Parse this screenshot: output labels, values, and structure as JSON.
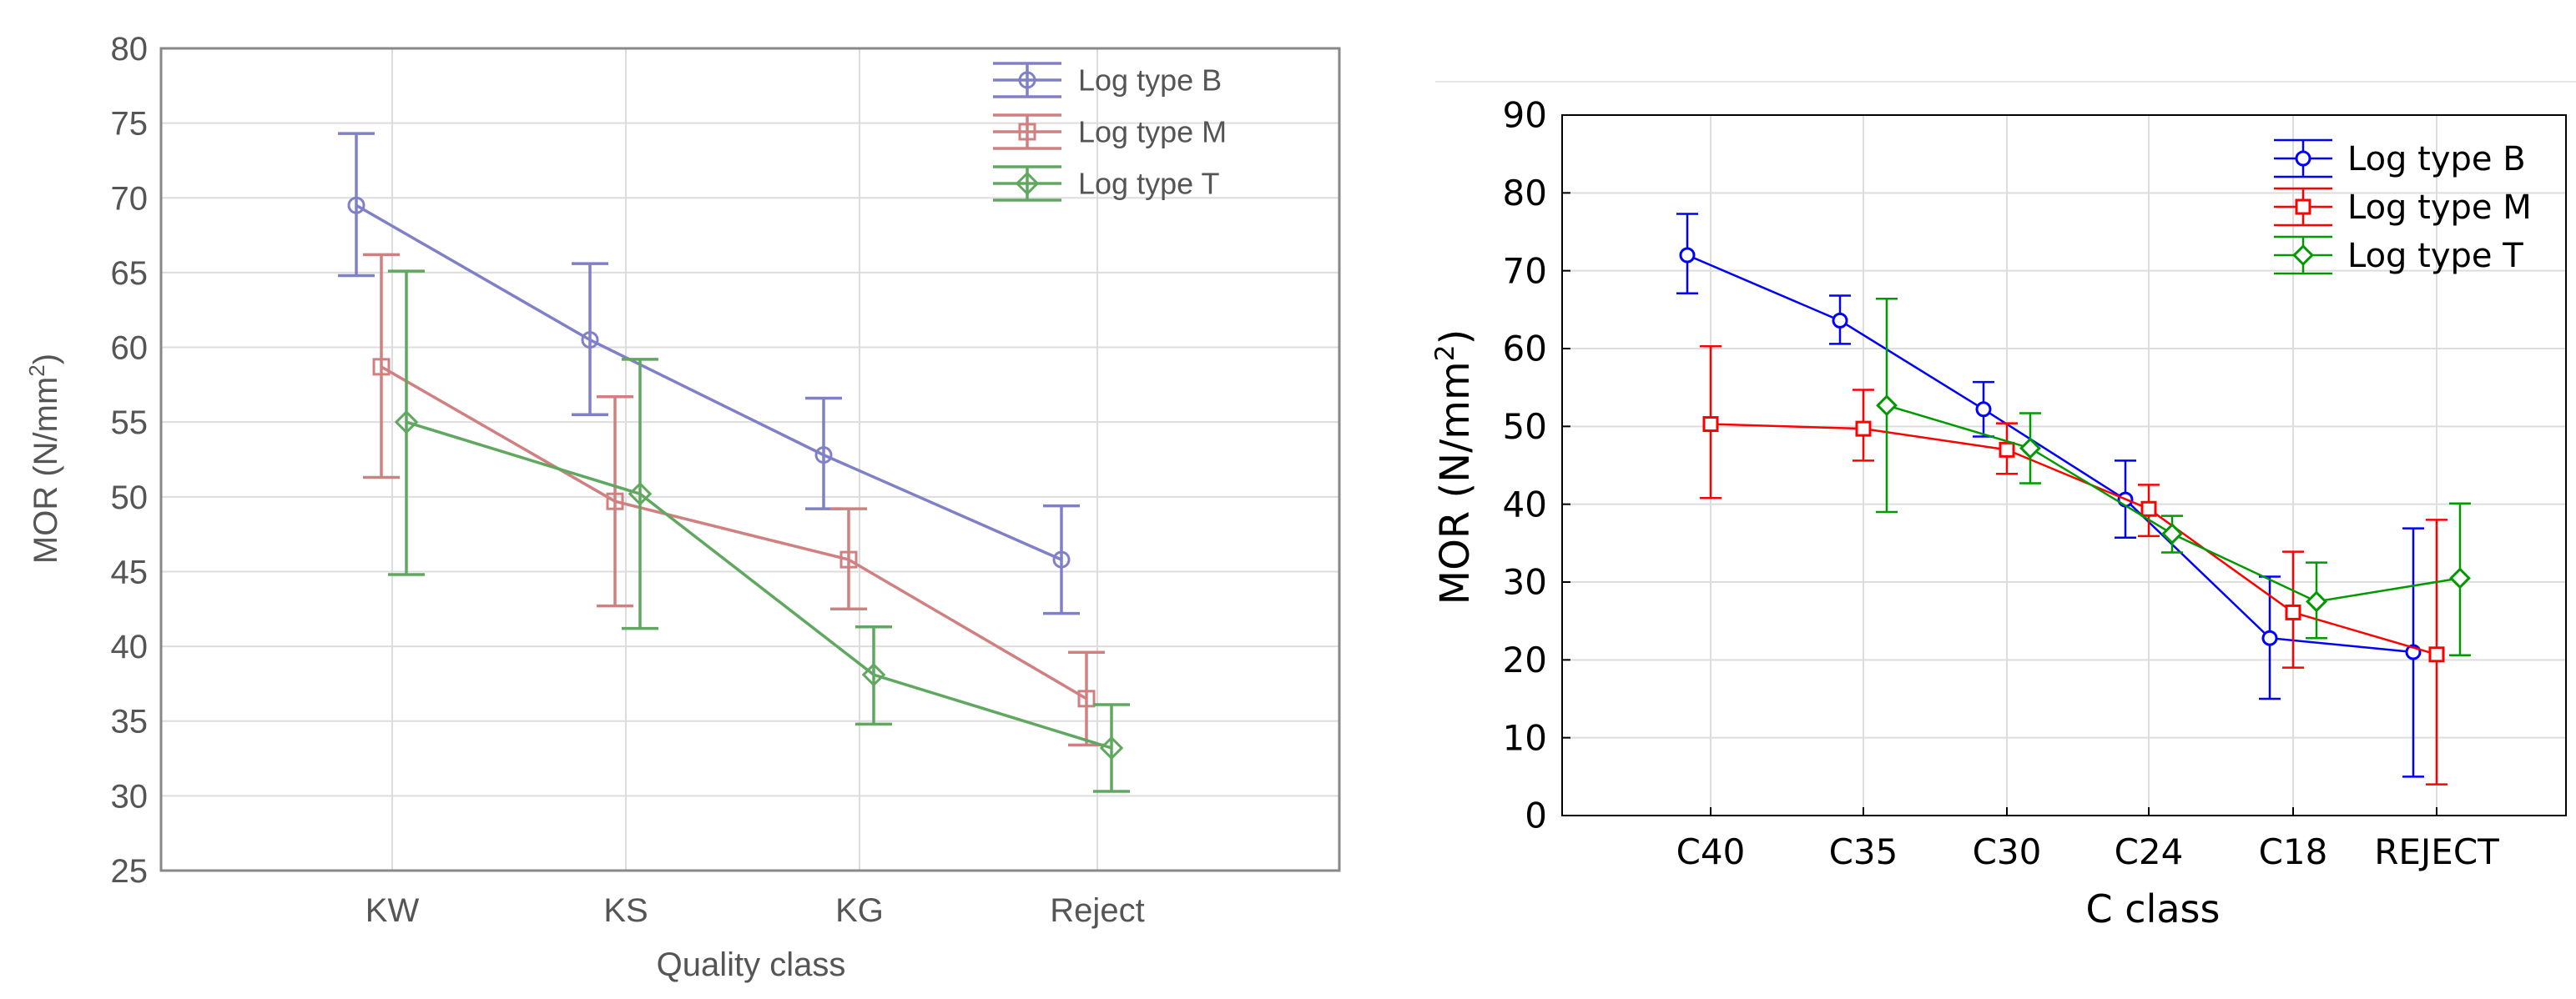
{
  "chart_data": [
    {
      "type": "line",
      "title": "",
      "xlabel": "Quality class",
      "ylabel": "MOR (N/mm²)",
      "ylabel_parts": {
        "base": "MOR (N/mm",
        "sup": "2",
        "end": ")"
      },
      "categories": [
        "KW",
        "KS",
        "KG",
        "Reject"
      ],
      "ylim": [
        25,
        80
      ],
      "yticks": [
        "25",
        "30",
        "35",
        "40",
        "45",
        "50",
        "55",
        "60",
        "65",
        "70",
        "75",
        "80"
      ],
      "grid": true,
      "error_bars": true,
      "legend_position": "top-right",
      "series": [
        {
          "name": "Log type B",
          "marker": "circle",
          "color": "#8080c8",
          "values": [
            69.5,
            60.5,
            52.8,
            45.8
          ],
          "err_low": [
            64.8,
            55.5,
            49.2,
            42.2
          ],
          "err_high": [
            74.3,
            65.6,
            56.6,
            49.4
          ]
        },
        {
          "name": "Log type M",
          "marker": "square",
          "color": "#d08080",
          "values": [
            58.7,
            49.7,
            45.8,
            36.5
          ],
          "err_low": [
            51.3,
            42.7,
            42.5,
            33.4
          ],
          "err_high": [
            66.2,
            56.7,
            49.2,
            39.6
          ]
        },
        {
          "name": "Log type T",
          "marker": "diamond",
          "color": "#60a860",
          "values": [
            55.0,
            50.2,
            38.1,
            33.2
          ],
          "err_low": [
            44.8,
            41.2,
            34.8,
            30.3
          ],
          "err_high": [
            65.1,
            59.2,
            41.3,
            36.1
          ]
        }
      ]
    },
    {
      "type": "line",
      "title": "",
      "xlabel": "C class",
      "ylabel": "MOR (N/mm²)",
      "ylabel_parts": {
        "base": "MOR (N/mm",
        "sup": "2",
        "end": ")"
      },
      "categories": [
        "C40",
        "C35",
        "C30",
        "C24",
        "C18",
        "REJECT"
      ],
      "ylim": [
        0,
        90
      ],
      "yticks": [
        "0",
        "10",
        "20",
        "30",
        "40",
        "50",
        "60",
        "70",
        "80",
        "90"
      ],
      "grid": true,
      "error_bars": true,
      "legend_position": "top-right",
      "series": [
        {
          "name": "Log type B",
          "marker": "circle",
          "color": "#0000ff",
          "values": [
            72.0,
            63.6,
            52.2,
            40.6,
            22.8,
            21.0
          ],
          "err_low": [
            67.1,
            60.6,
            48.7,
            35.7,
            15.0,
            5.0
          ],
          "err_high": [
            77.3,
            66.8,
            55.7,
            45.6,
            30.7,
            36.9
          ]
        },
        {
          "name": "Log type M",
          "marker": "square",
          "color": "#ff0000",
          "values": [
            50.3,
            49.7,
            47.0,
            39.4,
            26.1,
            20.7
          ],
          "err_low": [
            40.8,
            45.6,
            43.9,
            35.9,
            19.0,
            4.0
          ],
          "err_high": [
            60.3,
            54.7,
            50.4,
            42.5,
            33.9,
            38.0
          ]
        },
        {
          "name": "Log type T",
          "marker": "diamond",
          "color": "#009900",
          "values": [
            null,
            52.7,
            47.2,
            36.2,
            27.5,
            30.5
          ],
          "err_low": [
            null,
            39.0,
            42.7,
            33.8,
            22.8,
            20.6
          ],
          "err_high": [
            null,
            66.4,
            51.7,
            38.5,
            32.5,
            40.1
          ]
        }
      ]
    }
  ]
}
